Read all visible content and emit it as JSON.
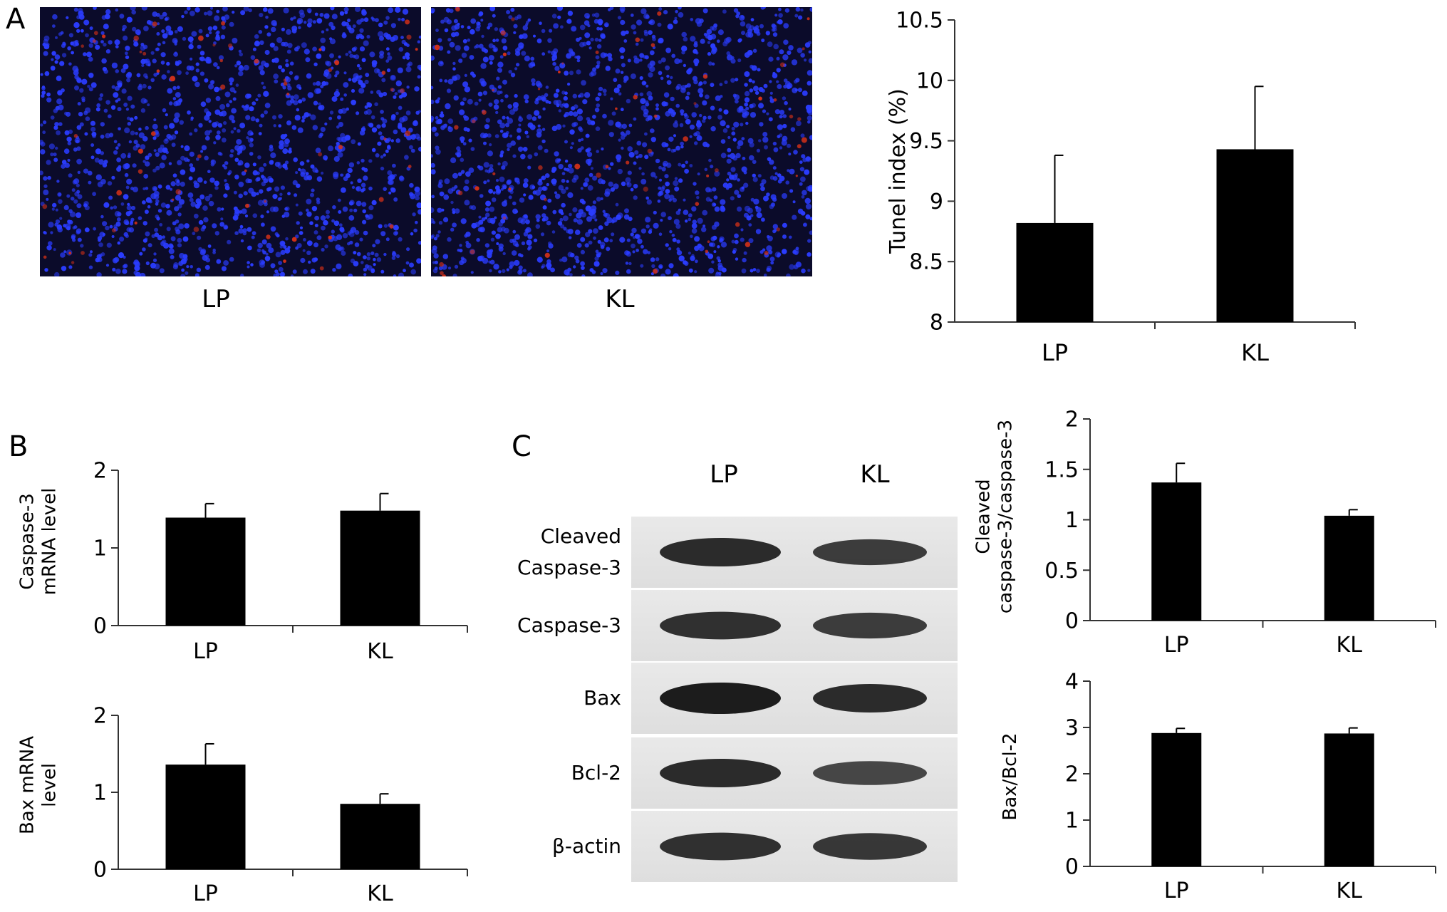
{
  "panels": {
    "a": "A",
    "b": "B",
    "c": "C"
  },
  "micrographs": [
    {
      "label": "LP",
      "nucleus_color": "#2a3cff",
      "signal_color": "#d23018",
      "background": "#0b0b2a"
    },
    {
      "label": "KL",
      "nucleus_color": "#2a3cff",
      "signal_color": "#d23018",
      "background": "#0b0b2a"
    }
  ],
  "blot": {
    "columns": [
      "LP",
      "KL"
    ],
    "rows": [
      {
        "label_lines": [
          "Cleaved",
          "Caspase-3"
        ],
        "intensity": [
          0.85,
          0.7
        ]
      },
      {
        "label_lines": [
          "Caspase-3"
        ],
        "intensity": [
          0.8,
          0.7
        ]
      },
      {
        "label_lines": [
          "Bax"
        ],
        "intensity": [
          1.0,
          0.85
        ]
      },
      {
        "label_lines": [
          "Bcl-2"
        ],
        "intensity": [
          0.85,
          0.6
        ]
      },
      {
        "label_lines": [
          "β-actin"
        ],
        "intensity": [
          0.8,
          0.75
        ]
      }
    ]
  },
  "chart_data": [
    {
      "id": "tunel",
      "type": "bar",
      "categories": [
        "LP",
        "KL"
      ],
      "values": [
        8.82,
        9.43
      ],
      "errors": [
        0.56,
        0.52
      ],
      "ylabel": "Tunel index (%)",
      "ylim": [
        8,
        10.5
      ],
      "yticks": [
        8,
        8.5,
        9,
        9.5,
        10,
        10.5
      ],
      "ytick_labels": [
        "8",
        "8.5",
        "9",
        "9.5",
        "10",
        "10.5"
      ]
    },
    {
      "id": "casp3-mrna",
      "type": "bar",
      "categories": [
        "LP",
        "KL"
      ],
      "values": [
        1.39,
        1.48
      ],
      "errors": [
        0.18,
        0.22
      ],
      "ylabel_lines": [
        "Caspase-3",
        "mRNA level"
      ],
      "ylim": [
        0,
        2
      ],
      "yticks": [
        0,
        1,
        2
      ],
      "ytick_labels": [
        "0",
        "1",
        "2"
      ]
    },
    {
      "id": "bax-mrna",
      "type": "bar",
      "categories": [
        "LP",
        "KL"
      ],
      "values": [
        1.36,
        0.85
      ],
      "errors": [
        0.27,
        0.13
      ],
      "ylabel_lines": [
        "Bax mRNA",
        "level"
      ],
      "ylim": [
        0,
        2
      ],
      "yticks": [
        0,
        1,
        2
      ],
      "ytick_labels": [
        "0",
        "1",
        "2"
      ]
    },
    {
      "id": "cleaved-ratio",
      "type": "bar",
      "categories": [
        "LP",
        "KL"
      ],
      "values": [
        1.37,
        1.04
      ],
      "errors": [
        0.19,
        0.06
      ],
      "ylabel_lines": [
        "Cleaved",
        "caspase-3/caspase-3"
      ],
      "ylim": [
        0,
        2
      ],
      "yticks": [
        0,
        0.5,
        1,
        1.5,
        2
      ],
      "ytick_labels": [
        "0",
        "0.5",
        "1",
        "1.5",
        "2"
      ]
    },
    {
      "id": "bax-bcl2",
      "type": "bar",
      "categories": [
        "LP",
        "KL"
      ],
      "values": [
        2.88,
        2.87
      ],
      "errors": [
        0.1,
        0.12
      ],
      "ylabel_lines": [
        "Bax/Bcl-2"
      ],
      "ylim": [
        0,
        4
      ],
      "yticks": [
        0,
        1,
        2,
        3,
        4
      ],
      "ytick_labels": [
        "0",
        "1",
        "2",
        "3",
        "4"
      ]
    }
  ]
}
